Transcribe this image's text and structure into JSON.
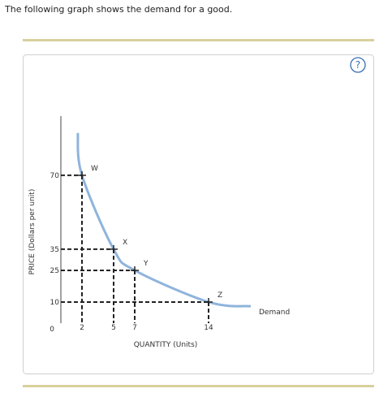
{
  "page": {
    "instruction": "The following graph shows the demand for a good.",
    "help": "?"
  },
  "chart_data": {
    "type": "line",
    "ylabel": "PRICE (Dollars per unit)",
    "xlabel": "QUANTITY (Units)",
    "xlim": [
      0,
      19
    ],
    "ylim": [
      0,
      98
    ],
    "xticks": [
      2,
      5,
      7,
      14
    ],
    "yticks": [
      0,
      10,
      25,
      35,
      70
    ],
    "series": [
      {
        "name": "Demand",
        "color": "#8fb4dc",
        "x": [
          1.6,
          2,
          5,
          7,
          14,
          18
        ],
        "values": [
          90,
          70,
          35,
          25,
          10,
          8
        ]
      }
    ],
    "points": {
      "labels": [
        "W",
        "X",
        "Y",
        "Z"
      ],
      "x": [
        2,
        5,
        7,
        14
      ],
      "y": [
        70,
        35,
        25,
        10
      ],
      "color": "#222222"
    }
  }
}
